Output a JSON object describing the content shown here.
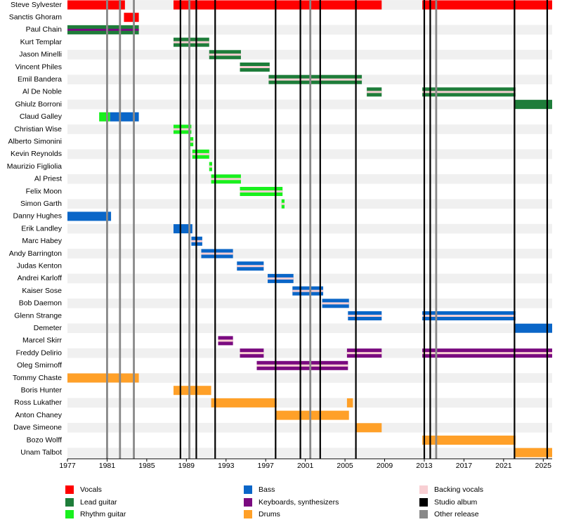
{
  "chart_data": {
    "type": "timeline",
    "xlim": [
      1977,
      2025.9
    ],
    "xticks": [
      1977,
      1981,
      1985,
      1989,
      1993,
      1997,
      2001,
      2005,
      2009,
      2013,
      2017,
      2021,
      2025
    ],
    "roles": [
      {
        "name": "Vocals",
        "color": "#ff0000"
      },
      {
        "name": "Lead guitar",
        "color": "#1e7d3a"
      },
      {
        "name": "Rhythm guitar",
        "color": "#19f01e"
      },
      {
        "name": "Bass",
        "color": "#0a66c8"
      },
      {
        "name": "Keyboards, synthesizers",
        "color": "#7a0a80"
      },
      {
        "name": "Drums",
        "color": "#ffa028"
      },
      {
        "name": "Backing vocals",
        "color": "#f8cfd3"
      }
    ],
    "events": [
      {
        "name": "Studio album",
        "color": "#000000",
        "years": [
          1988.4,
          1990.0,
          1991.9,
          1998.0,
          2000.5,
          2002.5,
          2006.1,
          2013.0,
          2013.6,
          2022.1,
          2025.4
        ]
      },
      {
        "name": "Other release",
        "color": "#888888",
        "years": [
          1981.0,
          1982.3,
          1983.7,
          1989.3,
          2001.5,
          2014.2
        ]
      }
    ],
    "members": [
      {
        "name": "Steve Sylvester",
        "periods": [
          {
            "role": "Vocals",
            "start": 1977,
            "end": 1982.8
          },
          {
            "role": "Vocals",
            "start": 1987.7,
            "end": 2008.7
          },
          {
            "role": "Vocals",
            "start": 2012.8,
            "end": 2025.9
          }
        ]
      },
      {
        "name": "Sanctis Ghoram",
        "periods": [
          {
            "role": "Vocals",
            "start": 1982.7,
            "end": 1984.2
          }
        ]
      },
      {
        "name": "Paul Chain",
        "periods": [
          {
            "role": "Lead guitar",
            "start": 1977,
            "end": 1984.2,
            "stripe": "Keyboards, synthesizers"
          }
        ]
      },
      {
        "name": "Kurt Templar",
        "periods": [
          {
            "role": "Lead guitar",
            "start": 1987.7,
            "end": 1991.3,
            "stripe": "Backing vocals"
          }
        ]
      },
      {
        "name": "Jason Minelli",
        "periods": [
          {
            "role": "Lead guitar",
            "start": 1991.3,
            "end": 1994.5,
            "stripe": "Backing vocals"
          }
        ]
      },
      {
        "name": "Vincent Philes",
        "periods": [
          {
            "role": "Lead guitar",
            "start": 1994.4,
            "end": 1997.4,
            "stripe": "Backing vocals"
          }
        ]
      },
      {
        "name": "Emil Bandera",
        "periods": [
          {
            "role": "Lead guitar",
            "start": 1997.3,
            "end": 2006.7,
            "stripe": "Backing vocals"
          }
        ]
      },
      {
        "name": "Al De Noble",
        "periods": [
          {
            "role": "Lead guitar",
            "start": 2007.2,
            "end": 2008.7,
            "stripe": "Backing vocals"
          },
          {
            "role": "Lead guitar",
            "start": 2012.8,
            "end": 2022.2,
            "stripe": "Backing vocals"
          }
        ]
      },
      {
        "name": "Ghiulz Borroni",
        "periods": [
          {
            "role": "Lead guitar",
            "start": 2022.1,
            "end": 2025.9
          }
        ]
      },
      {
        "name": "Claud Galley",
        "periods": [
          {
            "role": "Rhythm guitar",
            "start": 1980.2,
            "end": 1981.3
          },
          {
            "role": "Bass",
            "start": 1981.3,
            "end": 1984.2
          }
        ]
      },
      {
        "name": "Christian Wise",
        "periods": [
          {
            "role": "Rhythm guitar",
            "start": 1987.7,
            "end": 1989.5,
            "stripe": "Backing vocals"
          }
        ]
      },
      {
        "name": "Alberto Simonini",
        "periods": [
          {
            "role": "Rhythm guitar",
            "start": 1989.3,
            "end": 1989.7,
            "stripe": "Backing vocals"
          }
        ]
      },
      {
        "name": "Kevin Reynolds",
        "periods": [
          {
            "role": "Rhythm guitar",
            "start": 1989.6,
            "end": 1991.3,
            "stripe": "Backing vocals"
          }
        ]
      },
      {
        "name": "Maurizio Figliolia",
        "periods": [
          {
            "role": "Rhythm guitar",
            "start": 1991.3,
            "end": 1991.6,
            "stripe": "Backing vocals"
          }
        ]
      },
      {
        "name": "Al Priest",
        "periods": [
          {
            "role": "Rhythm guitar",
            "start": 1991.5,
            "end": 1994.5,
            "stripe": "Backing vocals"
          }
        ]
      },
      {
        "name": "Felix Moon",
        "periods": [
          {
            "role": "Rhythm guitar",
            "start": 1994.4,
            "end": 1998.7,
            "stripe": "Backing vocals"
          }
        ]
      },
      {
        "name": "Simon Garth",
        "periods": [
          {
            "role": "Rhythm guitar",
            "start": 1998.6,
            "end": 1998.9,
            "stripe": "Backing vocals"
          }
        ]
      },
      {
        "name": "Danny Hughes",
        "periods": [
          {
            "role": "Bass",
            "start": 1977,
            "end": 1981.4
          }
        ]
      },
      {
        "name": "Erik Landley",
        "periods": [
          {
            "role": "Bass",
            "start": 1987.7,
            "end": 1989.6
          }
        ]
      },
      {
        "name": "Marc Habey",
        "periods": [
          {
            "role": "Bass",
            "start": 1989.5,
            "end": 1990.6,
            "stripe": "Backing vocals"
          }
        ]
      },
      {
        "name": "Andy Barrington",
        "periods": [
          {
            "role": "Bass",
            "start": 1990.5,
            "end": 1993.7,
            "stripe": "Backing vocals"
          }
        ]
      },
      {
        "name": "Judas Kenton",
        "periods": [
          {
            "role": "Bass",
            "start": 1994.1,
            "end": 1996.8,
            "stripe": "Backing vocals"
          }
        ]
      },
      {
        "name": "Andrei Karloff",
        "periods": [
          {
            "role": "Bass",
            "start": 1997.2,
            "end": 1999.8,
            "stripe": "Backing vocals"
          }
        ]
      },
      {
        "name": "Kaiser Sose",
        "periods": [
          {
            "role": "Bass",
            "start": 1999.7,
            "end": 2002.8,
            "stripe": "Backing vocals"
          }
        ]
      },
      {
        "name": "Bob Daemon",
        "periods": [
          {
            "role": "Bass",
            "start": 2002.7,
            "end": 2005.4,
            "stripe": "Backing vocals"
          }
        ]
      },
      {
        "name": "Glenn Strange",
        "periods": [
          {
            "role": "Bass",
            "start": 2005.3,
            "end": 2008.7,
            "stripe": "Backing vocals"
          },
          {
            "role": "Bass",
            "start": 2012.8,
            "end": 2022.2,
            "stripe": "Backing vocals"
          }
        ]
      },
      {
        "name": "Demeter",
        "periods": [
          {
            "role": "Bass",
            "start": 2022.1,
            "end": 2025.9
          }
        ]
      },
      {
        "name": "Marcel Skirr",
        "periods": [
          {
            "role": "Keyboards, synthesizers",
            "start": 1992.2,
            "end": 1993.7,
            "stripe": "Backing vocals"
          }
        ]
      },
      {
        "name": "Freddy Delirio",
        "periods": [
          {
            "role": "Keyboards, synthesizers",
            "start": 1994.4,
            "end": 1996.8,
            "stripe": "Backing vocals"
          },
          {
            "role": "Keyboards, synthesizers",
            "start": 2005.2,
            "end": 2008.7,
            "stripe": "Backing vocals"
          },
          {
            "role": "Keyboards, synthesizers",
            "start": 2012.8,
            "end": 2025.9,
            "stripe": "Backing vocals"
          }
        ]
      },
      {
        "name": "Oleg Smirnoff",
        "periods": [
          {
            "role": "Keyboards, synthesizers",
            "start": 1996.1,
            "end": 2005.3,
            "stripe": "Backing vocals"
          }
        ]
      },
      {
        "name": "Tommy Chaste",
        "periods": [
          {
            "role": "Drums",
            "start": 1977,
            "end": 1984.2
          }
        ]
      },
      {
        "name": "Boris Hunter",
        "periods": [
          {
            "role": "Drums",
            "start": 1987.7,
            "end": 1991.5
          }
        ]
      },
      {
        "name": "Ross Lukather",
        "periods": [
          {
            "role": "Drums",
            "start": 1991.5,
            "end": 1998.1
          },
          {
            "role": "Drums",
            "start": 2005.2,
            "end": 2005.8
          }
        ]
      },
      {
        "name": "Anton Chaney",
        "periods": [
          {
            "role": "Drums",
            "start": 1998.0,
            "end": 2005.4
          }
        ]
      },
      {
        "name": "Dave Simeone",
        "periods": [
          {
            "role": "Drums",
            "start": 2006.1,
            "end": 2008.7
          }
        ]
      },
      {
        "name": "Bozo Wolff",
        "periods": [
          {
            "role": "Drums",
            "start": 2012.8,
            "end": 2022.2
          }
        ]
      },
      {
        "name": "Unam Talbot",
        "periods": [
          {
            "role": "Drums",
            "start": 2022.1,
            "end": 2025.9
          }
        ]
      }
    ]
  }
}
